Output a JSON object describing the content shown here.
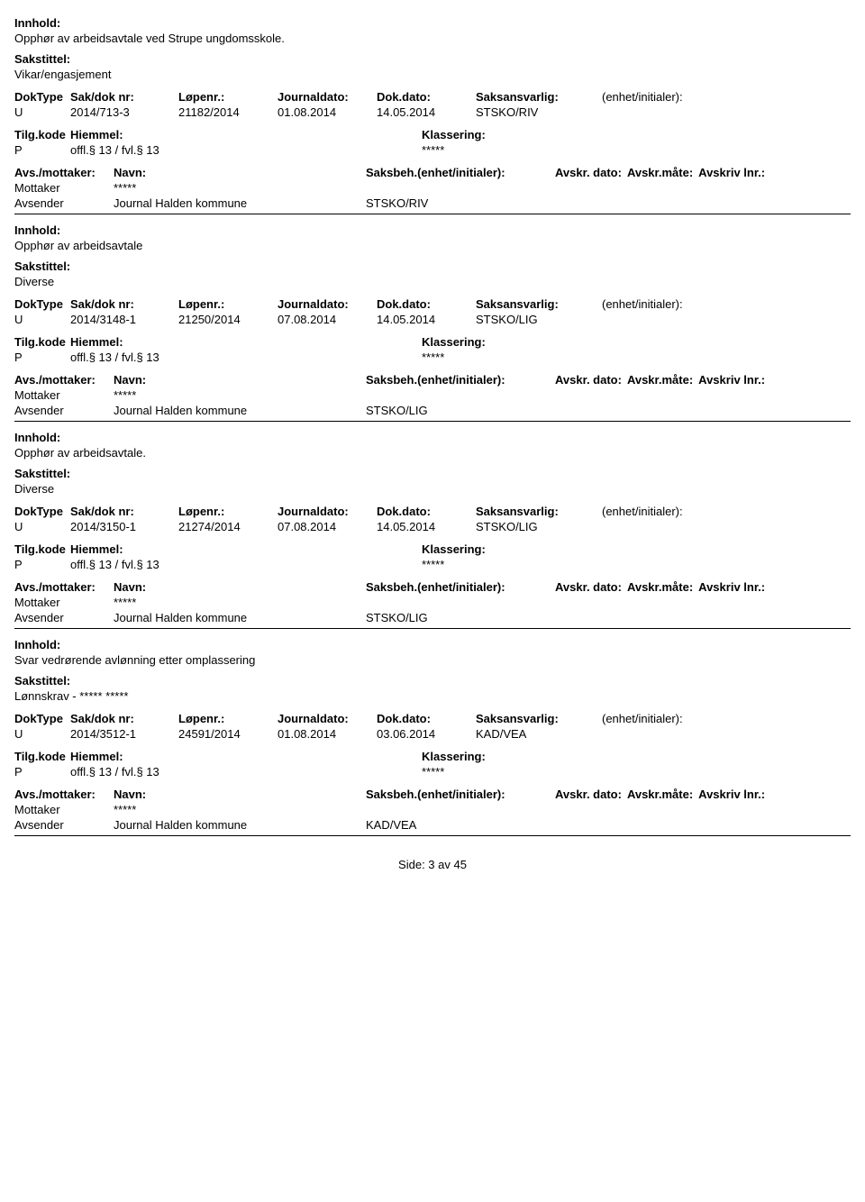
{
  "labels": {
    "innhold": "Innhold:",
    "sakstittel": "Sakstittel:",
    "doktype": "DokType",
    "saknr": "Sak/dok nr:",
    "lopenr": "Løpenr.:",
    "journaldato": "Journaldato:",
    "dokdato": "Dok.dato:",
    "saksansvarlig": "Saksansvarlig:",
    "enhetinit": "(enhet/initialer):",
    "tilgkode": "Tilg.kode",
    "hjemmel": "Hiemmel:",
    "klassering": "Klassering:",
    "avsmottaker": "Avs./mottaker:",
    "navn": "Navn:",
    "saksbeh": "Saksbeh.(enhet/initialer):",
    "avskrdato": "Avskr. dato:",
    "avskrmate": "Avskr.måte:",
    "avskrivlnr": "Avskriv lnr.:",
    "mottaker": "Mottaker",
    "avsender": "Avsender"
  },
  "records": [
    {
      "innhold": "Opphør av arbeidsavtale ved Strupe ungdomsskole.",
      "sakstittel": "Vikar/engasjement",
      "doktype": "U",
      "saknr": "2014/713-3",
      "lopenr": "21182/2014",
      "journaldato": "01.08.2014",
      "dokdato": "14.05.2014",
      "saksansvarlig": "STSKO/RIV",
      "tilgkode": "P",
      "hjemmel": "offl.§ 13 / fvl.§ 13",
      "klassering": "*****",
      "mottaker_navn": "*****",
      "avsender_navn": "Journal Halden kommune",
      "saksbeh_unit": "STSKO/RIV"
    },
    {
      "innhold": "Opphør av arbeidsavtale",
      "sakstittel": "Diverse",
      "doktype": "U",
      "saknr": "2014/3148-1",
      "lopenr": "21250/2014",
      "journaldato": "07.08.2014",
      "dokdato": "14.05.2014",
      "saksansvarlig": "STSKO/LIG",
      "tilgkode": "P",
      "hjemmel": "offl.§ 13 / fvl.§ 13",
      "klassering": "*****",
      "mottaker_navn": "*****",
      "avsender_navn": "Journal Halden kommune",
      "saksbeh_unit": "STSKO/LIG"
    },
    {
      "innhold": "Opphør av arbeidsavtale.",
      "sakstittel": "Diverse",
      "doktype": "U",
      "saknr": "2014/3150-1",
      "lopenr": "21274/2014",
      "journaldato": "07.08.2014",
      "dokdato": "14.05.2014",
      "saksansvarlig": "STSKO/LIG",
      "tilgkode": "P",
      "hjemmel": "offl.§ 13 / fvl.§ 13",
      "klassering": "*****",
      "mottaker_navn": "*****",
      "avsender_navn": "Journal Halden kommune",
      "saksbeh_unit": "STSKO/LIG"
    },
    {
      "innhold": "Svar vedrørende avlønning etter omplassering",
      "sakstittel": "Lønnskrav - ***** *****",
      "doktype": "U",
      "saknr": "2014/3512-1",
      "lopenr": "24591/2014",
      "journaldato": "01.08.2014",
      "dokdato": "03.06.2014",
      "saksansvarlig": "KAD/VEA",
      "tilgkode": "P",
      "hjemmel": "offl.§ 13 / fvl.§ 13",
      "klassering": "*****",
      "mottaker_navn": "*****",
      "avsender_navn": "Journal Halden kommune",
      "saksbeh_unit": "KAD/VEA"
    }
  ],
  "footer": "Side: 3 av 45",
  "col_widths": {
    "doktype": 62,
    "saknr": 120,
    "lopenr": 110,
    "journaldato": 110,
    "dokdato": 110,
    "saksansvarlig": 140,
    "tilgkode": 62,
    "hjemmel": 390,
    "avsmot_label": 110,
    "avsmot_name": 280,
    "saksbeh": 210
  }
}
